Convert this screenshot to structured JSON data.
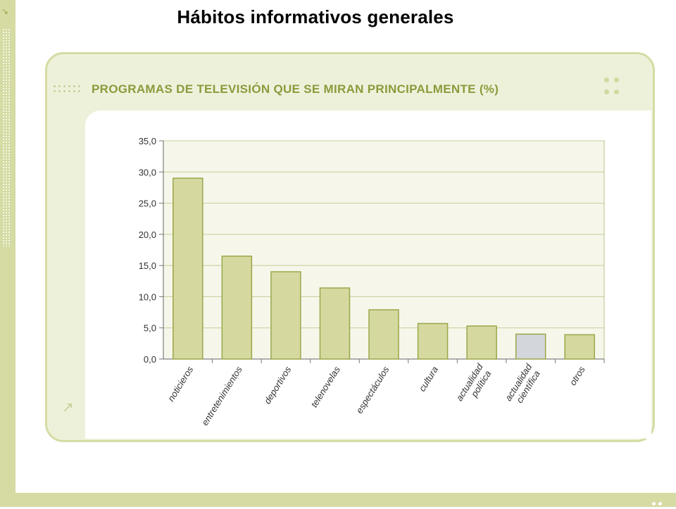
{
  "slide": {
    "title": "Hábitos informativos generales"
  },
  "colors": {
    "band": "#d5dba3",
    "bar": "#d5d9a0",
    "bar_stroke": "#9ba649",
    "bar_highlight": "#d3d6db",
    "header_text": "#8c9a3c"
  },
  "chart_data": {
    "type": "bar",
    "title": "PROGRAMAS DE TELEVISIÓN QUE SE MIRAN PRINCIPALMENTE (%)",
    "categories": [
      [
        "noticieros"
      ],
      [
        "entretenimientos"
      ],
      [
        "deportivos"
      ],
      [
        "telenovelas"
      ],
      [
        "espectáculos"
      ],
      [
        "cultura"
      ],
      [
        "actualidad",
        "política"
      ],
      [
        "actualidad",
        "científica"
      ],
      [
        "otros"
      ]
    ],
    "values": [
      29.0,
      16.5,
      14.0,
      11.4,
      7.9,
      5.7,
      5.3,
      4.0,
      3.9
    ],
    "highlight_index": 7,
    "ylim": [
      0,
      35
    ],
    "yticks": [
      "0,0",
      "5,0",
      "10,0",
      "15,0",
      "20,0",
      "25,0",
      "30,0",
      "35,0"
    ],
    "grid": true,
    "legend": "none"
  }
}
